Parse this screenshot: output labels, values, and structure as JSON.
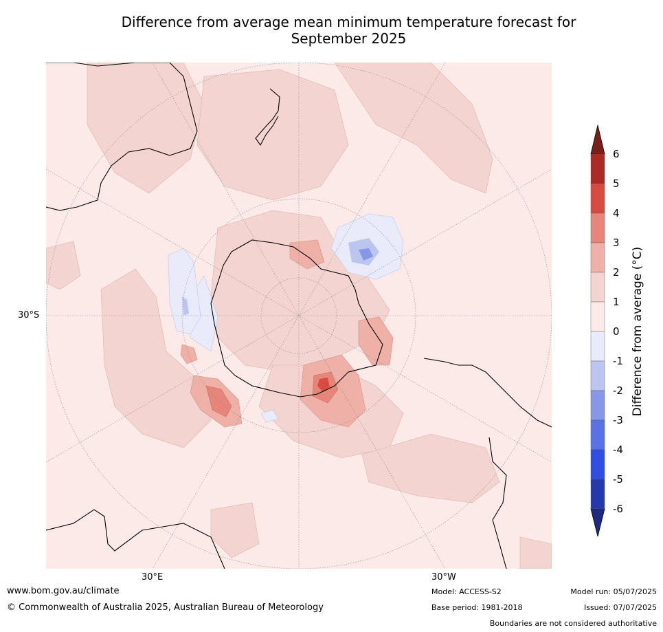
{
  "title_line1": "Difference from average mean minimum temperature forecast for",
  "title_line2": "September 2025",
  "map": {
    "projection": "south-polar stereographic",
    "lat_label": "30°S",
    "lon_label_east": "30°E",
    "lon_label_west": "30°W",
    "ocean_background_color": "#fbeae7",
    "coastline_color": "#000000"
  },
  "colorbar": {
    "title": "Difference from average (°C)",
    "ticks": [
      "6",
      "5",
      "4",
      "3",
      "2",
      "1",
      "0",
      "-1",
      "-2",
      "-3",
      "-4",
      "-5",
      "-6"
    ],
    "colors_top_to_bottom": [
      "#a92b24",
      "#d84b40",
      "#e8857b",
      "#efb0a8",
      "#f4d4d0",
      "#fbeae7",
      "#e9ebfa",
      "#bcc5ef",
      "#8797e8",
      "#5a72e3",
      "#304fe0",
      "#2639aa"
    ],
    "over_color": "#7a1f1a",
    "under_color": "#1e2a80"
  },
  "footer": {
    "website": "www.bom.gov.au/climate",
    "copyright": "© Commonwealth of Australia 2025, Australian Bureau of Meteorology",
    "model": "Model: ACCESS-S2",
    "base_period": "Base period: 1981-2018",
    "model_run": "Model run: 05/07/2025",
    "issued": "Issued: 07/07/2025",
    "disclaimer": "Boundaries are not considered authoritative"
  }
}
